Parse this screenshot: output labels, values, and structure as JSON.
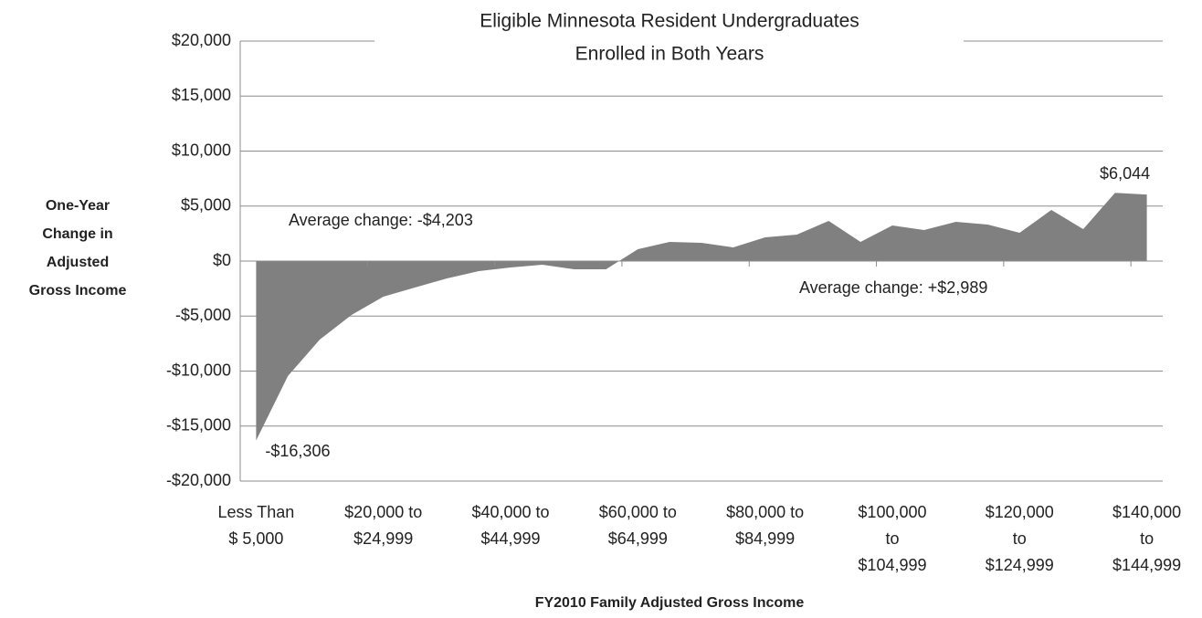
{
  "chart_data": {
    "type": "area",
    "title": [
      "Eligible Minnesota Resident Undergraduates",
      "Enrolled in Both Years"
    ],
    "y_axis_label": [
      "One-Year",
      "Change in",
      "Adjusted",
      "Gross Income"
    ],
    "x_axis_label": "FY2010 Family Adjusted Gross Income",
    "categories": [
      [
        "Less Than",
        "$ 5,000"
      ],
      null,
      null,
      null,
      [
        "$20,000 to",
        "$24,999"
      ],
      null,
      null,
      null,
      [
        "$40,000 to",
        "$44,999"
      ],
      null,
      null,
      null,
      [
        "$60,000 to",
        "$64,999"
      ],
      null,
      null,
      null,
      [
        "$80,000 to",
        "$84,999"
      ],
      null,
      null,
      null,
      [
        "$100,000",
        "to",
        "$104,999"
      ],
      null,
      null,
      null,
      [
        "$120,000",
        "to",
        "$124,999"
      ],
      null,
      null,
      null,
      [
        "$140,000",
        "to",
        "$144,999"
      ]
    ],
    "series": [
      {
        "color": "#808080",
        "values": [
          -16306,
          -10450,
          -7140,
          -4900,
          -3240,
          -2400,
          -1580,
          -910,
          -580,
          -330,
          -750,
          -750,
          1080,
          1740,
          1660,
          1240,
          2160,
          2410,
          3650,
          1740,
          3240,
          2820,
          3570,
          3320,
          2570,
          4650,
          2900,
          6200,
          6044
        ],
        "value_labels": [
          "-$16,306",
          null,
          null,
          null,
          null,
          null,
          null,
          null,
          null,
          null,
          null,
          null,
          null,
          null,
          null,
          null,
          null,
          null,
          null,
          null,
          null,
          null,
          null,
          null,
          null,
          null,
          null,
          null,
          "$6,044"
        ]
      }
    ],
    "annotations": [
      "Average change: -$4,203",
      "Average change: +$2,989"
    ],
    "ylim": [
      -20000,
      20000
    ],
    "yticks": [
      {
        "value": -20000,
        "label": "-$20,000"
      },
      {
        "value": -15000,
        "label": "-$15,000"
      },
      {
        "value": -10000,
        "label": "-$10,000"
      },
      {
        "value": -5000,
        "label": "-$5,000"
      },
      {
        "value": 0,
        "label": "$0"
      },
      {
        "value": 5000,
        "label": "$5,000"
      },
      {
        "value": 10000,
        "label": "$10,000"
      },
      {
        "value": 15000,
        "label": "$15,000"
      },
      {
        "value": 20000,
        "label": "$20,000"
      }
    ],
    "grid": true
  }
}
